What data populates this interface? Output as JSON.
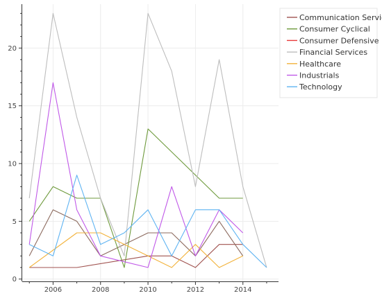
{
  "chart_data": {
    "type": "line",
    "title": "",
    "xlabel": "",
    "ylabel": "",
    "xlim": [
      2004.7,
      2015.5
    ],
    "ylim": [
      -0.2,
      23.8
    ],
    "grid": true,
    "legend_position": "top-right",
    "x_ticks": [
      2006,
      2008,
      2010,
      2012,
      2014
    ],
    "x_tick_labels": [
      "2006",
      "2008",
      "2010",
      "2012",
      "2014"
    ],
    "y_ticks": [
      0,
      5,
      10,
      15,
      20
    ],
    "y_tick_labels": [
      "0",
      "5",
      "10",
      "15",
      "20"
    ],
    "series": [
      {
        "name": "Communication Services",
        "color": "#a0524f",
        "points": [
          [
            2005,
            1
          ],
          [
            2006,
            1
          ],
          [
            2007,
            1
          ],
          [
            2010,
            2
          ],
          [
            2011,
            2
          ],
          [
            2012,
            1
          ],
          [
            2013,
            3
          ],
          [
            2014,
            3
          ]
        ]
      },
      {
        "name": "",
        "color": "#8c6a5e",
        "points": [
          [
            2005,
            2
          ],
          [
            2006,
            6
          ],
          [
            2007,
            5
          ],
          [
            2008,
            2
          ],
          [
            2009,
            3
          ],
          [
            2010,
            4
          ],
          [
            2011,
            4
          ],
          [
            2012,
            2
          ],
          [
            2013,
            5
          ],
          [
            2014,
            2
          ]
        ]
      },
      {
        "name": "Consumer Cyclical",
        "color": "#6e9a3c",
        "points": [
          [
            2005,
            5
          ],
          [
            2006,
            8
          ],
          [
            2007,
            7
          ],
          [
            2008,
            7
          ],
          [
            2009,
            1
          ],
          [
            2010,
            13
          ],
          [
            2013,
            7
          ],
          [
            2014,
            7
          ]
        ]
      },
      {
        "name": "Consumer Defensive",
        "color": "#e83a3a",
        "points": []
      },
      {
        "name": "Financial Services",
        "color": "#bdbdbd",
        "points": [
          [
            2005,
            7
          ],
          [
            2006,
            23
          ],
          [
            2007,
            14
          ],
          [
            2008,
            7
          ],
          [
            2009,
            2
          ],
          [
            2010,
            23
          ],
          [
            2011,
            18
          ],
          [
            2012,
            8
          ],
          [
            2013,
            19
          ],
          [
            2014,
            8
          ],
          [
            2015,
            1
          ]
        ]
      },
      {
        "name": "Healthcare",
        "color": "#f2b23a",
        "points": [
          [
            2005,
            1
          ],
          [
            2007,
            4
          ],
          [
            2008,
            4
          ],
          [
            2010,
            2
          ],
          [
            2011,
            1
          ],
          [
            2012,
            3
          ],
          [
            2013,
            1
          ],
          [
            2014,
            2
          ]
        ]
      },
      {
        "name": "Industrials",
        "color": "#c058e8",
        "points": [
          [
            2005,
            3
          ],
          [
            2006,
            17
          ],
          [
            2007,
            6
          ],
          [
            2008,
            2
          ],
          [
            2010,
            1
          ],
          [
            2011,
            8
          ],
          [
            2012,
            2
          ],
          [
            2013,
            6
          ],
          [
            2014,
            4
          ]
        ]
      },
      {
        "name": "Technology",
        "color": "#5fb4f2",
        "points": [
          [
            2005,
            3
          ],
          [
            2006,
            2
          ],
          [
            2007,
            9
          ],
          [
            2008,
            3
          ],
          [
            2009,
            4
          ],
          [
            2010,
            6
          ],
          [
            2011,
            2
          ],
          [
            2012,
            6
          ],
          [
            2013,
            6
          ],
          [
            2014,
            3
          ],
          [
            2015,
            1
          ]
        ]
      }
    ]
  }
}
